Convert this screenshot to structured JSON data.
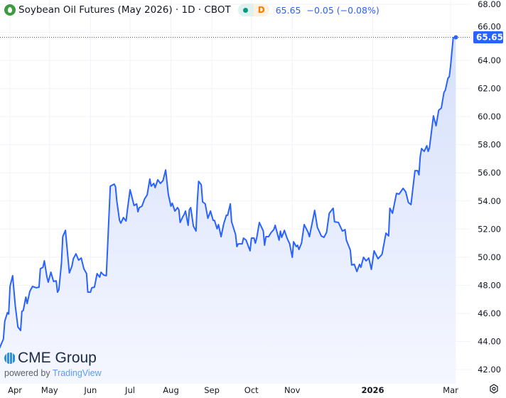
{
  "header": {
    "title": "Soybean Oil Futures (May 2026) · 1D · CBOT",
    "interval_badge": "D",
    "last_price": "65.65",
    "change": "−0.05 (−0.08%)",
    "icon": "oil-drop-icon"
  },
  "logo": {
    "brand": "CME Group",
    "powered_by": "powered by",
    "platform": "TradingView"
  },
  "colors": {
    "line": "#2962ff",
    "fill_top": "#d6e0fb",
    "fill_bottom": "#f5f7ff",
    "price_badge": "#2962ff",
    "grid": "#f0f3fa",
    "axis_text": "#131722"
  },
  "chart_data": {
    "type": "area",
    "title": "Soybean Oil Futures (May 2026) · 1D · CBOT",
    "xlabel": "",
    "ylabel": "",
    "ylim": [
      42,
      68
    ],
    "yticks": [
      "42.00",
      "44.00",
      "46.00",
      "48.00",
      "50.00",
      "52.00",
      "54.00",
      "56.00",
      "58.00",
      "60.00",
      "62.00",
      "64.00",
      "66.00",
      "68.00"
    ],
    "xticks": [
      {
        "label": "Apr",
        "date": "2025-04-01"
      },
      {
        "label": "May",
        "date": "2025-05-01"
      },
      {
        "label": "Jun",
        "date": "2025-06-01"
      },
      {
        "label": "Jul",
        "date": "2025-07-01"
      },
      {
        "label": "Aug",
        "date": "2025-08-01"
      },
      {
        "label": "Sep",
        "date": "2025-09-01"
      },
      {
        "label": "Oct",
        "date": "2025-10-01"
      },
      {
        "label": "Nov",
        "date": "2025-11-01"
      },
      {
        "label": "2026",
        "date": "2026-01-01"
      },
      {
        "label": "Mar",
        "date": "2026-03-01"
      }
    ],
    "grid": true,
    "last_value_label": "65.65",
    "x": [
      "2025-03-24",
      "2025-03-27",
      "2025-03-28",
      "2025-03-30",
      "2025-03-31",
      "2025-04-01",
      "2025-04-03",
      "2025-04-05",
      "2025-04-07",
      "2025-04-09",
      "2025-04-10",
      "2025-04-11",
      "2025-04-13",
      "2025-04-14",
      "2025-04-16",
      "2025-04-18",
      "2025-04-21",
      "2025-04-23",
      "2025-04-24",
      "2025-04-26",
      "2025-04-27",
      "2025-04-29",
      "2025-04-30",
      "2025-05-02",
      "2025-05-04",
      "2025-05-06",
      "2025-05-07",
      "2025-05-08",
      "2025-05-10",
      "2025-05-11",
      "2025-05-13",
      "2025-05-16",
      "2025-05-18",
      "2025-05-19",
      "2025-05-21",
      "2025-05-23",
      "2025-05-25",
      "2025-05-27",
      "2025-05-29",
      "2025-05-30",
      "2025-06-01",
      "2025-06-02",
      "2025-06-04",
      "2025-06-06",
      "2025-06-08",
      "2025-06-09",
      "2025-06-11",
      "2025-06-13",
      "2025-06-16",
      "2025-06-19",
      "2025-06-20",
      "2025-06-21",
      "2025-06-23",
      "2025-06-24",
      "2025-06-26",
      "2025-06-28",
      "2025-06-29",
      "2025-07-01",
      "2025-07-02",
      "2025-07-04",
      "2025-07-06",
      "2025-07-07",
      "2025-07-08",
      "2025-07-10",
      "2025-07-12",
      "2025-07-14",
      "2025-07-16",
      "2025-07-17",
      "2025-07-19",
      "2025-07-20",
      "2025-07-22",
      "2025-07-24",
      "2025-07-26",
      "2025-07-28",
      "2025-07-30",
      "2025-08-01",
      "2025-08-02",
      "2025-08-04",
      "2025-08-06",
      "2025-08-07",
      "2025-08-08",
      "2025-08-10",
      "2025-08-11",
      "2025-08-12",
      "2025-08-14",
      "2025-08-15",
      "2025-08-16",
      "2025-08-18",
      "2025-08-20",
      "2025-08-21",
      "2025-08-22",
      "2025-08-24",
      "2025-08-25",
      "2025-08-27",
      "2025-08-29",
      "2025-08-31",
      "2025-09-02",
      "2025-09-03",
      "2025-09-05",
      "2025-09-06",
      "2025-09-08",
      "2025-09-10",
      "2025-09-12",
      "2025-09-13",
      "2025-09-15",
      "2025-09-16",
      "2025-09-19",
      "2025-09-20",
      "2025-09-21",
      "2025-09-24",
      "2025-09-25",
      "2025-09-27",
      "2025-09-29",
      "2025-09-30",
      "2025-10-01",
      "2025-10-03",
      "2025-10-04",
      "2025-10-05",
      "2025-10-07",
      "2025-10-10",
      "2025-10-11",
      "2025-10-12",
      "2025-10-14",
      "2025-10-16",
      "2025-10-18",
      "2025-10-19",
      "2025-10-22",
      "2025-10-23",
      "2025-10-24",
      "2025-10-26",
      "2025-10-28",
      "2025-10-30",
      "2025-11-01",
      "2025-11-02",
      "2025-11-04",
      "2025-11-05",
      "2025-11-06",
      "2025-11-08",
      "2025-11-10",
      "2025-11-13",
      "2025-11-14",
      "2025-11-18",
      "2025-11-20",
      "2025-11-23",
      "2025-11-25",
      "2025-11-27",
      "2025-11-29",
      "2025-12-02",
      "2025-12-03",
      "2025-12-06",
      "2025-12-09",
      "2025-12-11",
      "2025-12-12",
      "2025-12-15",
      "2025-12-16",
      "2025-12-18",
      "2025-12-20",
      "2025-12-22",
      "2025-12-23",
      "2025-12-25",
      "2025-12-27",
      "2025-12-29",
      "2025-12-31",
      "2026-01-02",
      "2026-01-05",
      "2026-01-08",
      "2026-01-11",
      "2026-01-13",
      "2026-01-14",
      "2026-01-16",
      "2026-01-19",
      "2026-01-21",
      "2026-01-24",
      "2026-01-26",
      "2026-01-28",
      "2026-01-30",
      "2026-02-02",
      "2026-02-04",
      "2026-02-05",
      "2026-02-06",
      "2026-02-07",
      "2026-02-09",
      "2026-02-11",
      "2026-02-12",
      "2026-02-13",
      "2026-02-16",
      "2026-02-18",
      "2026-02-20",
      "2026-02-22",
      "2026-02-24",
      "2026-02-25",
      "2026-02-27",
      "2026-02-28",
      "2026-03-01",
      "2026-03-03",
      "2026-03-05"
    ],
    "values": [
      43.52,
      44.17,
      45.44,
      46.05,
      45.95,
      47.92,
      48.68,
      46.55,
      45.03,
      44.78,
      46.15,
      46.2,
      47.16,
      46.7,
      47.56,
      47.92,
      47.82,
      47.87,
      49.18,
      49.28,
      49.74,
      48.58,
      48.22,
      48.93,
      48.27,
      48.32,
      47.51,
      47.67,
      49.59,
      51.46,
      51.91,
      48.88,
      49.38,
      49.89,
      50.24,
      49.79,
      49.94,
      49.18,
      48.83,
      47.51,
      47.51,
      47.82,
      47.87,
      48.83,
      48.58,
      48.93,
      48.73,
      48.68,
      55.05,
      55.2,
      55.0,
      53.99,
      52.62,
      52.42,
      52.82,
      52.57,
      53.38,
      54.8,
      54.44,
      53.68,
      53.79,
      53.23,
      53.53,
      53.63,
      54.14,
      54.44,
      55.56,
      55.05,
      55.25,
      54.95,
      55.51,
      55.25,
      55.45,
      56.21,
      54.49,
      53.63,
      53.84,
      53.28,
      53.53,
      53.38,
      52.47,
      52.88,
      53.03,
      53.28,
      52.27,
      53.38,
      53.53,
      52.22,
      51.86,
      53.99,
      55.4,
      55.15,
      53.94,
      53.79,
      52.77,
      53.28,
      52.62,
      52.62,
      52.02,
      52.32,
      51.46,
      52.37,
      52.98,
      52.98,
      53.79,
      52.52,
      51.61,
      50.75,
      50.95,
      50.95,
      51.36,
      51.21,
      50.7,
      50.45,
      51.36,
      51.36,
      51.0,
      51.36,
      52.47,
      51.86,
      50.85,
      51.46,
      51.46,
      51.76,
      51.96,
      52.27,
      51.21,
      51.86,
      51.41,
      51.91,
      51.36,
      50.95,
      49.99,
      51.1,
      50.75,
      50.85,
      50.55,
      51.0,
      52.32,
      51.76,
      51.46,
      53.33,
      52.12,
      51.51,
      51.41,
      51.76,
      53.13,
      53.48,
      52.52,
      52.47,
      51.86,
      51.96,
      51.21,
      50.5,
      49.44,
      49.49,
      48.98,
      49.49,
      49.28,
      49.99,
      49.74,
      49.94,
      49.13,
      50.45,
      49.89,
      50.19,
      51.71,
      51.51,
      53.48,
      53.13,
      54.54,
      54.49,
      54.9,
      54.65,
      53.89,
      53.74,
      56.16,
      56.16,
      55.86,
      57.17,
      57.73,
      57.53,
      57.93,
      57.53,
      57.78,
      60.06,
      59.35,
      60.46,
      60.61,
      61.73,
      61.88,
      62.74,
      62.84,
      63.6,
      65.62,
      65.65
    ]
  }
}
